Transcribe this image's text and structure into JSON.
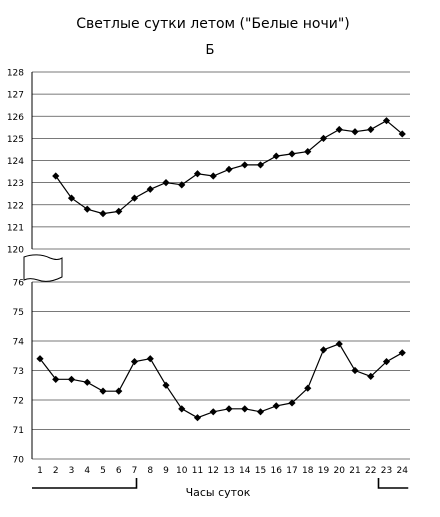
{
  "chart_data": {
    "type": "line",
    "title": "Светлые сутки летом (\"Белые ночи\")",
    "subtitle": "Б",
    "xlabel": "Часы суток",
    "x": [
      1,
      2,
      3,
      4,
      5,
      6,
      7,
      8,
      9,
      10,
      11,
      12,
      13,
      14,
      15,
      16,
      17,
      18,
      19,
      20,
      21,
      22,
      23,
      24
    ],
    "xticks": [
      "1",
      "2",
      "3",
      "4",
      "5",
      "6",
      "7",
      "8",
      "9",
      "10",
      "11",
      "12",
      "13",
      "14",
      "15",
      "16",
      "17",
      "18",
      "19",
      "20",
      "21",
      "22",
      "23",
      "24"
    ],
    "series": [
      {
        "values": [
          null,
          123.3,
          122.3,
          121.8,
          121.6,
          121.7,
          122.3,
          122.7,
          123.0,
          122.9,
          123.4,
          123.3,
          123.6,
          123.8,
          123.8,
          124.2,
          124.3,
          124.4,
          125.0,
          125.4,
          125.3,
          125.4,
          125.8,
          125.2
        ]
      },
      {
        "values": [
          73.4,
          72.7,
          72.7,
          72.6,
          72.3,
          72.3,
          73.3,
          73.4,
          72.5,
          71.7,
          71.4,
          71.6,
          71.7,
          71.7,
          71.6,
          71.8,
          71.9,
          72.4,
          73.7,
          73.9,
          73.0,
          72.8,
          73.3,
          73.6
        ]
      }
    ],
    "upper_axis": {
      "ylim": [
        120,
        128
      ],
      "ticks": [
        "120",
        "121",
        "122",
        "123",
        "124",
        "125",
        "126",
        "127",
        "128"
      ]
    },
    "lower_axis": {
      "ylim": [
        70,
        76
      ],
      "ticks": [
        "70",
        "71",
        "72",
        "73",
        "74",
        "75",
        "76"
      ]
    },
    "axis_break": true,
    "grid": true,
    "dark_periods": [
      {
        "from": 1,
        "to": 7
      },
      {
        "from": 23,
        "to": 24
      }
    ]
  }
}
